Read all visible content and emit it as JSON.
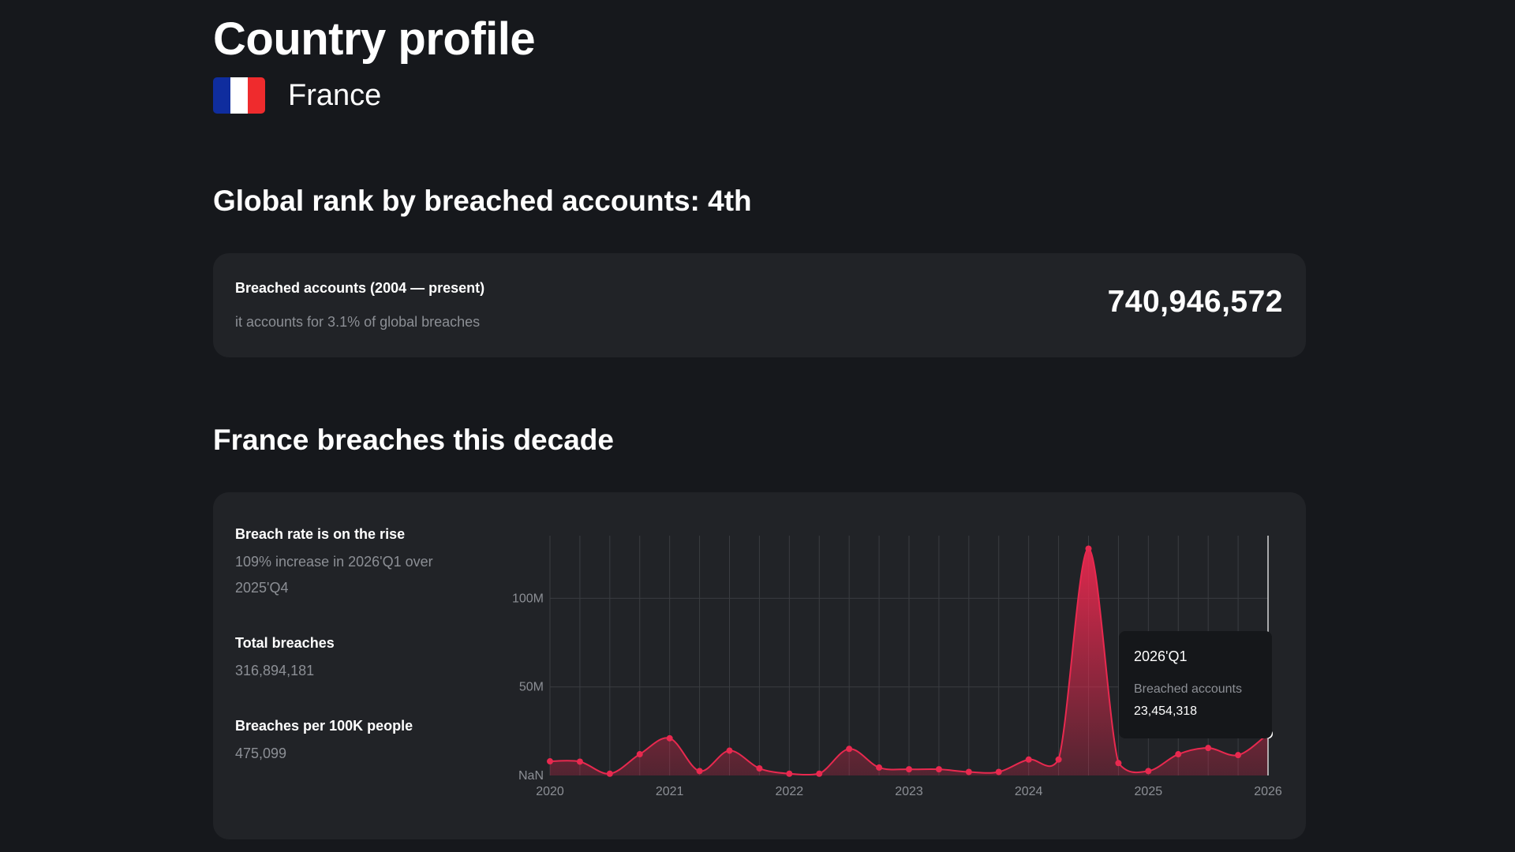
{
  "page": {
    "title": "Country profile",
    "country": "France",
    "flag_colors": [
      "#0f2d9e",
      "#ffffff",
      "#ef2b2d"
    ]
  },
  "rank": {
    "heading": "Global rank by breached accounts: 4th"
  },
  "summary_card": {
    "label": "Breached accounts (2004 — present)",
    "sub": "it accounts for 3.1% of global breaches",
    "total": "740,946,572"
  },
  "decade": {
    "heading": "France breaches this decade",
    "stats": [
      {
        "title": "Breach rate is on the rise",
        "value": "109% increase in 2026'Q1 over 2025'Q4"
      },
      {
        "title": "Total breaches",
        "value": "316,894,181"
      },
      {
        "title": "Breaches per 100K people",
        "value": "475,099"
      }
    ],
    "tooltip": {
      "period": "2026'Q1",
      "label": "Breached accounts",
      "value": "23,454,318"
    }
  },
  "chart_data": {
    "type": "area",
    "accent_color": "#e8294f",
    "x": [
      "2020'Q1",
      "2020'Q2",
      "2020'Q3",
      "2020'Q4",
      "2021'Q1",
      "2021'Q2",
      "2021'Q3",
      "2021'Q4",
      "2022'Q1",
      "2022'Q2",
      "2022'Q3",
      "2022'Q4",
      "2023'Q1",
      "2023'Q2",
      "2023'Q3",
      "2023'Q4",
      "2024'Q1",
      "2024'Q2",
      "2024'Q3",
      "2024'Q4",
      "2025'Q1",
      "2025'Q2",
      "2025'Q3",
      "2025'Q4",
      "2026'Q1"
    ],
    "series": [
      {
        "values": [
          8000000,
          7800000,
          1000000,
          12000000,
          21000000,
          2500000,
          14000000,
          4000000,
          1000000,
          1000000,
          15000000,
          4500000,
          3500000,
          3500000,
          2000000,
          2000000,
          9000000,
          9000000,
          128000000,
          7000000,
          2500000,
          12000000,
          15500000,
          11500000,
          23454318
        ]
      }
    ],
    "x_tick_labels": [
      "2020",
      "2021",
      "2022",
      "2023",
      "2024",
      "2025",
      "2026"
    ],
    "y_tick_labels": [
      "NaN",
      "50M",
      "100M"
    ],
    "ylim": [
      0,
      130000000
    ],
    "grid": true,
    "highlighted_index": 24
  }
}
